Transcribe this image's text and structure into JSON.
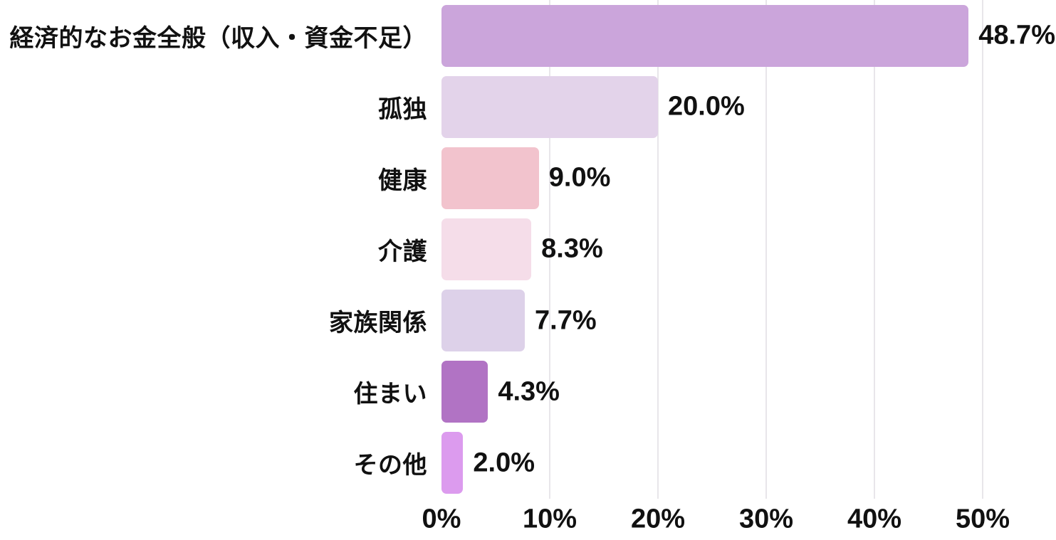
{
  "chart_data": {
    "type": "bar",
    "orientation": "horizontal",
    "title": "",
    "xlabel": "",
    "ylabel": "",
    "categories": [
      "経済的なお金全般（収入・資金不足）",
      "孤独",
      "健康",
      "介護",
      "家族関係",
      "住まい",
      "その他"
    ],
    "values": [
      48.7,
      20.0,
      9.0,
      8.3,
      7.7,
      4.3,
      2.0
    ],
    "value_labels": [
      "48.7%",
      "20.0%",
      "9.0%",
      "8.3%",
      "7.7%",
      "4.3%",
      "2.0%"
    ],
    "bar_colors": [
      "#cba5db",
      "#e3d3ea",
      "#f2c3cd",
      "#f5dde9",
      "#ddd1e9",
      "#b173c4",
      "#dc9bee"
    ],
    "xlim": [
      0,
      50
    ],
    "x_ticks": [
      "0%",
      "10%",
      "20%",
      "30%",
      "40%",
      "50%"
    ],
    "x_tick_values": [
      0,
      10,
      20,
      30,
      40,
      50
    ],
    "grid": true,
    "gridline_color": "#e8e6ea",
    "background_color": "#ffffff",
    "text_color": "#111111",
    "legend": false
  }
}
